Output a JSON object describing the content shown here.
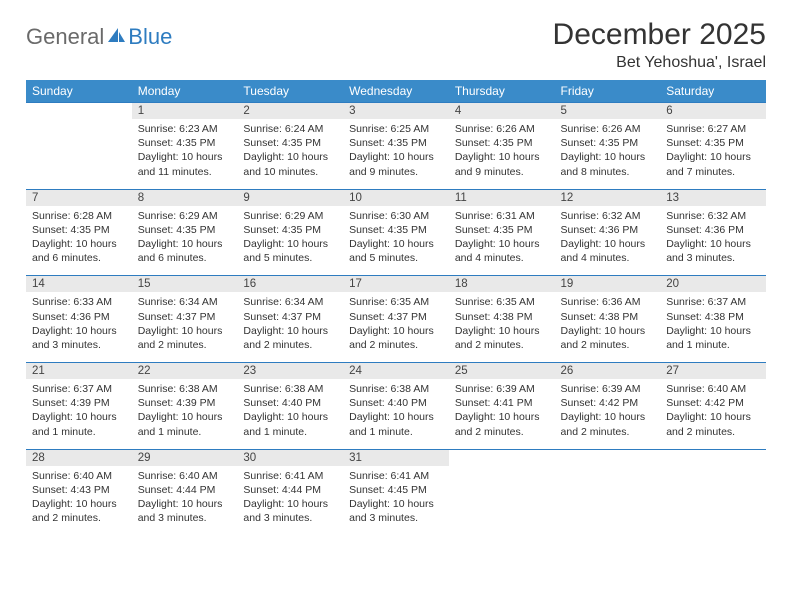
{
  "logo": {
    "part1": "General",
    "part2": "Blue"
  },
  "title": "December 2025",
  "location": "Bet Yehoshua', Israel",
  "colors": {
    "header_bg": "#3a8bc9",
    "header_text": "#ffffff",
    "daynum_bg": "#e9e9e9",
    "row_border": "#2e7cc0",
    "logo_gray": "#6a6a6a",
    "logo_blue": "#2e7cc0"
  },
  "day_names": [
    "Sunday",
    "Monday",
    "Tuesday",
    "Wednesday",
    "Thursday",
    "Friday",
    "Saturday"
  ],
  "weeks": [
    [
      {
        "n": "",
        "sr": "",
        "ss": "",
        "dl": ""
      },
      {
        "n": "1",
        "sr": "Sunrise: 6:23 AM",
        "ss": "Sunset: 4:35 PM",
        "dl": "Daylight: 10 hours and 11 minutes."
      },
      {
        "n": "2",
        "sr": "Sunrise: 6:24 AM",
        "ss": "Sunset: 4:35 PM",
        "dl": "Daylight: 10 hours and 10 minutes."
      },
      {
        "n": "3",
        "sr": "Sunrise: 6:25 AM",
        "ss": "Sunset: 4:35 PM",
        "dl": "Daylight: 10 hours and 9 minutes."
      },
      {
        "n": "4",
        "sr": "Sunrise: 6:26 AM",
        "ss": "Sunset: 4:35 PM",
        "dl": "Daylight: 10 hours and 9 minutes."
      },
      {
        "n": "5",
        "sr": "Sunrise: 6:26 AM",
        "ss": "Sunset: 4:35 PM",
        "dl": "Daylight: 10 hours and 8 minutes."
      },
      {
        "n": "6",
        "sr": "Sunrise: 6:27 AM",
        "ss": "Sunset: 4:35 PM",
        "dl": "Daylight: 10 hours and 7 minutes."
      }
    ],
    [
      {
        "n": "7",
        "sr": "Sunrise: 6:28 AM",
        "ss": "Sunset: 4:35 PM",
        "dl": "Daylight: 10 hours and 6 minutes."
      },
      {
        "n": "8",
        "sr": "Sunrise: 6:29 AM",
        "ss": "Sunset: 4:35 PM",
        "dl": "Daylight: 10 hours and 6 minutes."
      },
      {
        "n": "9",
        "sr": "Sunrise: 6:29 AM",
        "ss": "Sunset: 4:35 PM",
        "dl": "Daylight: 10 hours and 5 minutes."
      },
      {
        "n": "10",
        "sr": "Sunrise: 6:30 AM",
        "ss": "Sunset: 4:35 PM",
        "dl": "Daylight: 10 hours and 5 minutes."
      },
      {
        "n": "11",
        "sr": "Sunrise: 6:31 AM",
        "ss": "Sunset: 4:35 PM",
        "dl": "Daylight: 10 hours and 4 minutes."
      },
      {
        "n": "12",
        "sr": "Sunrise: 6:32 AM",
        "ss": "Sunset: 4:36 PM",
        "dl": "Daylight: 10 hours and 4 minutes."
      },
      {
        "n": "13",
        "sr": "Sunrise: 6:32 AM",
        "ss": "Sunset: 4:36 PM",
        "dl": "Daylight: 10 hours and 3 minutes."
      }
    ],
    [
      {
        "n": "14",
        "sr": "Sunrise: 6:33 AM",
        "ss": "Sunset: 4:36 PM",
        "dl": "Daylight: 10 hours and 3 minutes."
      },
      {
        "n": "15",
        "sr": "Sunrise: 6:34 AM",
        "ss": "Sunset: 4:37 PM",
        "dl": "Daylight: 10 hours and 2 minutes."
      },
      {
        "n": "16",
        "sr": "Sunrise: 6:34 AM",
        "ss": "Sunset: 4:37 PM",
        "dl": "Daylight: 10 hours and 2 minutes."
      },
      {
        "n": "17",
        "sr": "Sunrise: 6:35 AM",
        "ss": "Sunset: 4:37 PM",
        "dl": "Daylight: 10 hours and 2 minutes."
      },
      {
        "n": "18",
        "sr": "Sunrise: 6:35 AM",
        "ss": "Sunset: 4:38 PM",
        "dl": "Daylight: 10 hours and 2 minutes."
      },
      {
        "n": "19",
        "sr": "Sunrise: 6:36 AM",
        "ss": "Sunset: 4:38 PM",
        "dl": "Daylight: 10 hours and 2 minutes."
      },
      {
        "n": "20",
        "sr": "Sunrise: 6:37 AM",
        "ss": "Sunset: 4:38 PM",
        "dl": "Daylight: 10 hours and 1 minute."
      }
    ],
    [
      {
        "n": "21",
        "sr": "Sunrise: 6:37 AM",
        "ss": "Sunset: 4:39 PM",
        "dl": "Daylight: 10 hours and 1 minute."
      },
      {
        "n": "22",
        "sr": "Sunrise: 6:38 AM",
        "ss": "Sunset: 4:39 PM",
        "dl": "Daylight: 10 hours and 1 minute."
      },
      {
        "n": "23",
        "sr": "Sunrise: 6:38 AM",
        "ss": "Sunset: 4:40 PM",
        "dl": "Daylight: 10 hours and 1 minute."
      },
      {
        "n": "24",
        "sr": "Sunrise: 6:38 AM",
        "ss": "Sunset: 4:40 PM",
        "dl": "Daylight: 10 hours and 1 minute."
      },
      {
        "n": "25",
        "sr": "Sunrise: 6:39 AM",
        "ss": "Sunset: 4:41 PM",
        "dl": "Daylight: 10 hours and 2 minutes."
      },
      {
        "n": "26",
        "sr": "Sunrise: 6:39 AM",
        "ss": "Sunset: 4:42 PM",
        "dl": "Daylight: 10 hours and 2 minutes."
      },
      {
        "n": "27",
        "sr": "Sunrise: 6:40 AM",
        "ss": "Sunset: 4:42 PM",
        "dl": "Daylight: 10 hours and 2 minutes."
      }
    ],
    [
      {
        "n": "28",
        "sr": "Sunrise: 6:40 AM",
        "ss": "Sunset: 4:43 PM",
        "dl": "Daylight: 10 hours and 2 minutes."
      },
      {
        "n": "29",
        "sr": "Sunrise: 6:40 AM",
        "ss": "Sunset: 4:44 PM",
        "dl": "Daylight: 10 hours and 3 minutes."
      },
      {
        "n": "30",
        "sr": "Sunrise: 6:41 AM",
        "ss": "Sunset: 4:44 PM",
        "dl": "Daylight: 10 hours and 3 minutes."
      },
      {
        "n": "31",
        "sr": "Sunrise: 6:41 AM",
        "ss": "Sunset: 4:45 PM",
        "dl": "Daylight: 10 hours and 3 minutes."
      },
      {
        "n": "",
        "sr": "",
        "ss": "",
        "dl": ""
      },
      {
        "n": "",
        "sr": "",
        "ss": "",
        "dl": ""
      },
      {
        "n": "",
        "sr": "",
        "ss": "",
        "dl": ""
      }
    ]
  ]
}
